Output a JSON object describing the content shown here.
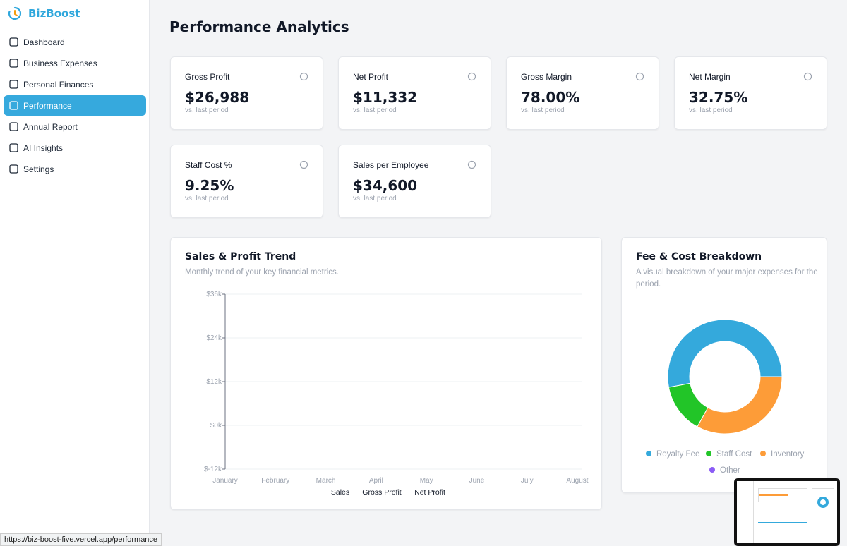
{
  "sidebar": {
    "brand": "BizBoost",
    "nav": [
      {
        "label": "Dashboard"
      },
      {
        "label": "Business Expenses"
      },
      {
        "label": "Personal Finances"
      },
      {
        "label": "Performance",
        "active": true
      },
      {
        "label": "Annual Report"
      },
      {
        "label": "AI Insights"
      },
      {
        "label": "Settings"
      }
    ]
  },
  "page": {
    "title": "Performance Analytics"
  },
  "metrics": [
    {
      "label": "Gross Profit",
      "value": "$26,988",
      "note": "vs. last period"
    },
    {
      "label": "Net Profit",
      "value": "$11,332",
      "note": "vs. last period"
    },
    {
      "label": "Gross Margin",
      "value": "78.00%",
      "note": "vs. last period"
    },
    {
      "label": "Net Margin",
      "value": "32.75%",
      "note": "vs. last period"
    },
    {
      "label": "Staff Cost %",
      "value": "9.25%",
      "note": "vs. last period"
    },
    {
      "label": "Sales per Employee",
      "value": "$34,600",
      "note": "vs. last period"
    }
  ],
  "chart_data": [
    {
      "type": "line",
      "title": "Sales & Profit Trend",
      "subtitle": "Monthly trend of your key financial metrics.",
      "categories": [
        "January",
        "February",
        "March",
        "April",
        "May",
        "June",
        "July",
        "August"
      ],
      "series": [
        {
          "name": "Sales",
          "values": [
            null,
            null,
            null,
            null,
            null,
            null,
            null,
            null
          ]
        },
        {
          "name": "Gross Profit",
          "values": [
            null,
            null,
            null,
            null,
            null,
            null,
            null,
            null
          ]
        },
        {
          "name": "Net Profit",
          "values": [
            null,
            null,
            null,
            null,
            null,
            null,
            null,
            null
          ]
        }
      ],
      "ylim": [
        -12000,
        36000
      ],
      "yticks": [
        {
          "value": -12000,
          "label": "$-12k"
        },
        {
          "value": 0,
          "label": "$0k"
        },
        {
          "value": 12000,
          "label": "$12k"
        },
        {
          "value": 24000,
          "label": "$24k"
        },
        {
          "value": 36000,
          "label": "$36k"
        }
      ],
      "grid": true
    },
    {
      "type": "pie",
      "donut": true,
      "title": "Fee & Cost Breakdown",
      "subtitle": "A visual breakdown of your major expenses for the period.",
      "categories": [
        "Royalty Fee",
        "Staff Cost",
        "Inventory",
        "Other"
      ],
      "values": [
        53,
        14,
        33,
        0
      ],
      "colors": [
        "#34a9dc",
        "#22c528",
        "#fd9c38",
        "#8b5cf6"
      ]
    }
  ],
  "status_url": "https://biz-boost-five.vercel.app/performance"
}
